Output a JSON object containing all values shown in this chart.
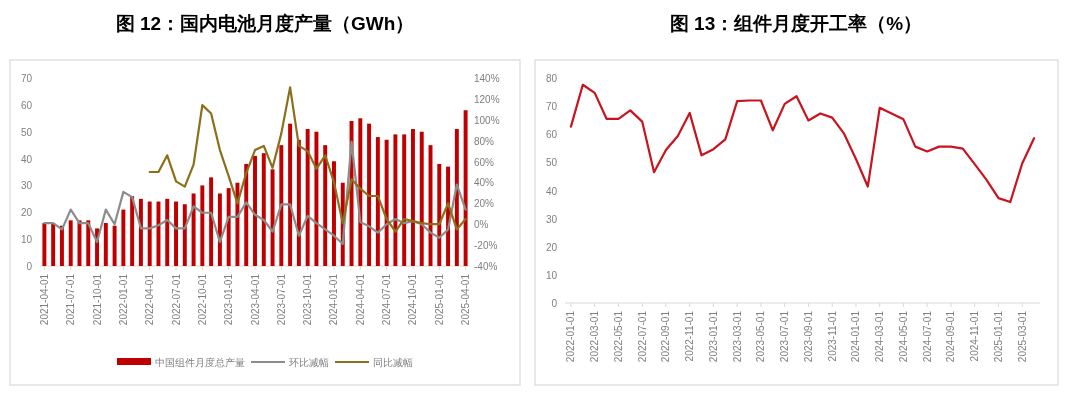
{
  "chart_data": [
    {
      "type": "bar",
      "title": "图 12：国内电池月度产量（GWh）",
      "categories": [
        "2021-04-01",
        null,
        null,
        "2021-07-01",
        null,
        null,
        "2021-10-01",
        null,
        null,
        "2022-01-01",
        null,
        null,
        "2022-04-01",
        null,
        null,
        "2022-07-01",
        null,
        null,
        "2022-10-01",
        null,
        null,
        "2023-01-01",
        null,
        null,
        "2023-04-01",
        null,
        null,
        "2023-07-01",
        null,
        null,
        "2023-10-01",
        null,
        null,
        "2024-01-01",
        null,
        null,
        "2024-04-01",
        null,
        null,
        "2024-07-01",
        null,
        null,
        "2024-10-01",
        null,
        null,
        "2025-01-01",
        null,
        null,
        "2025-04-01"
      ],
      "series": [
        {
          "name": "中国组件月度总产量",
          "color": "#c00000",
          "values": [
            16,
            16,
            15,
            17,
            17,
            17,
            14,
            16,
            15,
            21,
            26,
            25,
            24,
            24,
            25,
            24,
            23,
            27,
            30,
            33,
            27,
            29,
            31,
            38,
            41,
            42,
            36,
            45,
            53,
            47,
            51,
            50,
            45,
            39,
            31,
            54,
            55,
            53,
            48,
            47,
            49,
            49,
            51,
            50,
            45,
            38,
            37,
            51,
            58
          ]
        },
        {
          "name": "环比减幅",
          "type": "line",
          "axis": "y2",
          "color": "#8c8c8c",
          "values": [
            1,
            1,
            -5,
            14,
            1,
            1,
            -17,
            14,
            0,
            31,
            26,
            -4,
            -4,
            -1,
            4,
            -4,
            -4,
            17,
            11,
            11,
            -17,
            7,
            7,
            21,
            9,
            4,
            -7,
            19,
            19,
            -11,
            8,
            1,
            -5,
            -11,
            -19,
            79,
            2,
            -2,
            -8,
            0,
            5,
            1,
            3,
            0,
            -8,
            -13,
            -5,
            38,
            14
          ]
        },
        {
          "name": "同比减幅",
          "type": "line",
          "axis": "y2",
          "color": "#8b6f1a",
          "values": [
            null,
            null,
            null,
            null,
            null,
            null,
            null,
            null,
            null,
            null,
            null,
            null,
            50,
            50,
            66,
            41,
            36,
            57,
            114,
            106,
            71,
            46,
            20,
            49,
            71,
            75,
            54,
            87,
            131,
            75,
            70,
            53,
            66,
            40,
            1,
            43,
            34,
            27,
            27,
            5,
            -7,
            5,
            3,
            1,
            0,
            0,
            20,
            -5,
            5
          ]
        }
      ],
      "ylim": [
        0,
        70
      ],
      "yticks": [
        0,
        10,
        20,
        30,
        40,
        50,
        60,
        70
      ],
      "y2lim": [
        -40,
        140
      ],
      "y2ticks": [
        {
          "value": -40,
          "label": "-40%"
        },
        {
          "value": -20,
          "label": "-20%"
        },
        {
          "value": 0,
          "label": "0%"
        },
        {
          "value": 20,
          "label": "20%"
        },
        {
          "value": 40,
          "label": "40%"
        },
        {
          "value": 60,
          "label": "60%"
        },
        {
          "value": 80,
          "label": "80%"
        },
        {
          "value": 100,
          "label": "100%"
        },
        {
          "value": 120,
          "label": "120%"
        },
        {
          "value": 140,
          "label": "140%"
        }
      ],
      "legend": "bottom"
    },
    {
      "type": "line",
      "title": "图 13：组件月度开工率（%）",
      "categories": [
        "2022-01-01",
        null,
        "2022-03-01",
        null,
        "2022-05-01",
        null,
        "2022-07-01",
        null,
        "2022-09-01",
        null,
        "2022-11-01",
        null,
        "2023-01-01",
        null,
        "2023-03-01",
        null,
        "2023-05-01",
        null,
        "2023-07-01",
        null,
        "2023-09-01",
        null,
        "2023-11-01",
        null,
        "2024-01-01",
        null,
        "2024-03-01",
        null,
        "2024-05-01",
        null,
        "2024-07-01",
        null,
        "2024-09-01",
        null,
        "2024-11-01",
        null,
        "2025-01-01",
        null,
        "2025-03-01",
        null
      ],
      "series": [
        {
          "color": "#c8141e",
          "values": [
            62.7,
            77.6,
            74.7,
            65.5,
            65.5,
            68.5,
            64.5,
            46.5,
            54.4,
            59.4,
            67.6,
            52.5,
            54.7,
            58.2,
            71.8,
            72,
            72,
            61.4,
            70.8,
            73.5,
            64.9,
            67.4,
            65.9,
            60.2,
            51.2,
            41.4,
            69.4,
            67.4,
            65.3,
            55.6,
            53.9,
            55.6,
            55.6,
            54.9,
            49.4,
            43.8,
            37.3,
            35.9,
            49.6,
            58.6
          ]
        }
      ],
      "ylim": [
        0,
        80
      ],
      "yticks": [
        0,
        10,
        20,
        30,
        40,
        50,
        60,
        70,
        80
      ]
    }
  ]
}
